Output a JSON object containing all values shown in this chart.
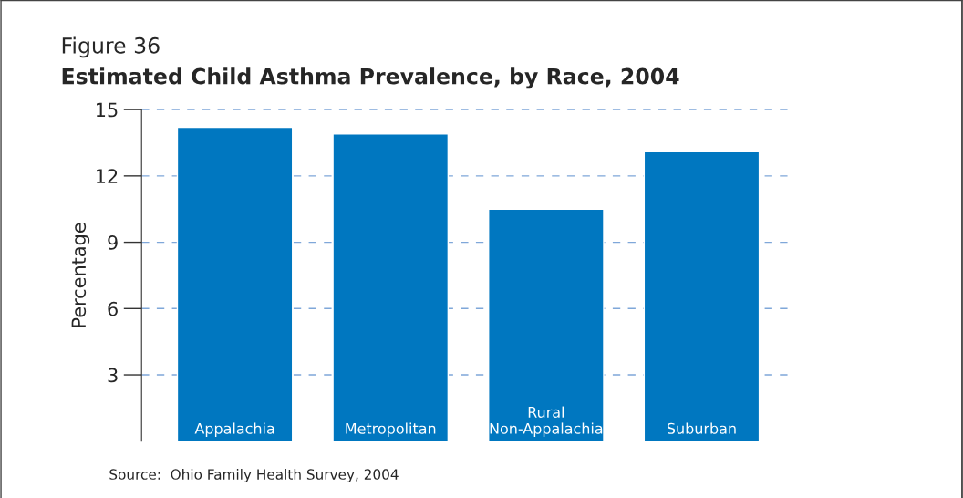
{
  "chart_data": {
    "type": "bar",
    "title": "Figure 36",
    "subtitle": "Estimated Child Asthma Prevalence, by Race, 2004",
    "ylabel": "Percentage",
    "categories": [
      "Appalachia",
      "Metropolitan",
      "Rural\nNon-Appalachia",
      "Suburban"
    ],
    "values": [
      14.2,
      13.9,
      10.5,
      13.1
    ],
    "color": "#0077c0",
    "ylim": [
      0,
      15
    ],
    "yticks": [
      3,
      6,
      9,
      12,
      15
    ],
    "grid": "y",
    "annotations": [
      "Source:  Ohio Family Health Survey, 2004"
    ]
  }
}
